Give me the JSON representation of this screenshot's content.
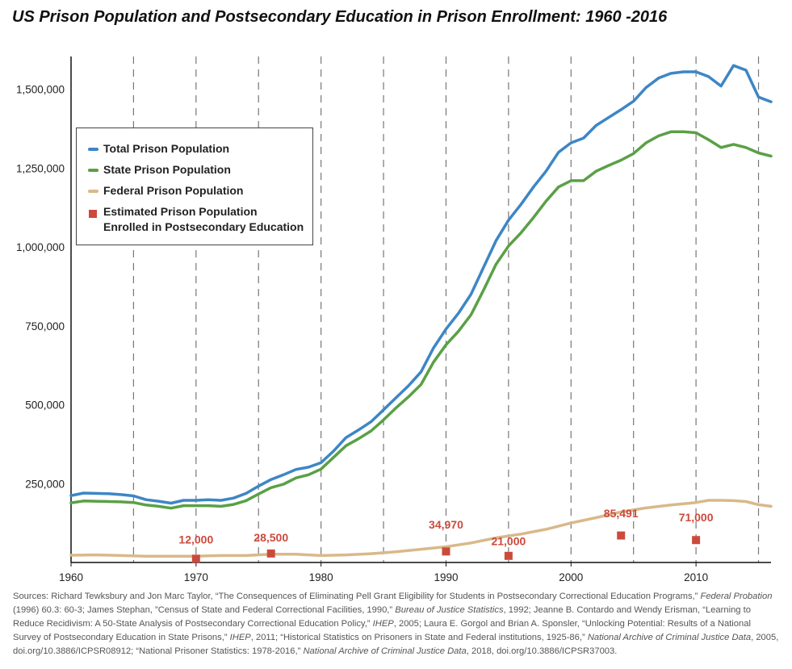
{
  "title": "US Prison Population and Postsecondary Education in Prison Enrollment: 1960 -2016",
  "chart_data": {
    "type": "line",
    "xlim": [
      1960,
      2016
    ],
    "ylim": [
      0,
      1600000
    ],
    "x_ticks": [
      1960,
      1970,
      1980,
      1990,
      2000,
      2010
    ],
    "x_tick_labels": [
      "1960",
      "1970",
      "1980",
      "1990",
      "2000",
      "2010"
    ],
    "y_ticks": [
      250000,
      500000,
      750000,
      1000000,
      1250000,
      1500000
    ],
    "y_tick_labels": [
      "250,000",
      "500,000",
      "750,000",
      "1,000,000",
      "1,250,000",
      "1,500,000"
    ],
    "vertical_dashed_lines": [
      1965,
      1970,
      1975,
      1980,
      1985,
      1990,
      1995,
      2000,
      2005,
      2010,
      2015
    ],
    "colors": {
      "total": "#3d86c6",
      "state": "#5aa046",
      "federal": "#d8b98a",
      "enrolled": "#cc4a3c"
    },
    "series": [
      {
        "name": "Total Prison Population",
        "key": "total",
        "x": [
          1960,
          1961,
          1962,
          1963,
          1964,
          1965,
          1966,
          1967,
          1968,
          1969,
          1970,
          1971,
          1972,
          1973,
          1974,
          1975,
          1976,
          1977,
          1978,
          1979,
          1980,
          1981,
          1982,
          1983,
          1984,
          1985,
          1986,
          1987,
          1988,
          1989,
          1990,
          1991,
          1992,
          1993,
          1994,
          1995,
          1996,
          1997,
          1998,
          1999,
          2000,
          2001,
          2002,
          2003,
          2004,
          2005,
          2006,
          2007,
          2008,
          2009,
          2010,
          2011,
          2012,
          2013,
          2014,
          2015,
          2016
        ],
        "values": [
          212000,
          220000,
          219000,
          218000,
          215000,
          211000,
          199000,
          194000,
          188000,
          197000,
          197000,
          199000,
          197000,
          204000,
          219000,
          242000,
          263000,
          278000,
          295000,
          302000,
          316000,
          353000,
          396000,
          420000,
          446000,
          484000,
          522000,
          560000,
          604000,
          680000,
          740000,
          790000,
          850000,
          935000,
          1020000,
          1085000,
          1135000,
          1190000,
          1240000,
          1300000,
          1330000,
          1345000,
          1385000,
          1410000,
          1435000,
          1462000,
          1505000,
          1535000,
          1550000,
          1555000,
          1555000,
          1540000,
          1510000,
          1575000,
          1560000,
          1475000,
          1460000
        ]
      },
      {
        "name": "State Prison Population",
        "key": "state",
        "x": [
          1960,
          1961,
          1962,
          1963,
          1964,
          1965,
          1966,
          1967,
          1968,
          1969,
          1970,
          1971,
          1972,
          1973,
          1974,
          1975,
          1976,
          1977,
          1978,
          1979,
          1980,
          1981,
          1982,
          1983,
          1984,
          1985,
          1986,
          1987,
          1988,
          1989,
          1990,
          1991,
          1992,
          1993,
          1994,
          1995,
          1996,
          1997,
          1998,
          1999,
          2000,
          2001,
          2002,
          2003,
          2004,
          2005,
          2006,
          2007,
          2008,
          2009,
          2010,
          2011,
          2012,
          2013,
          2014,
          2015,
          2016
        ],
        "values": [
          189000,
          195000,
          194000,
          193000,
          192000,
          190000,
          182000,
          178000,
          172000,
          180000,
          180000,
          180000,
          178000,
          184000,
          196000,
          217000,
          237000,
          248000,
          268000,
          278000,
          296000,
          333000,
          370000,
          392000,
          417000,
          452000,
          490000,
          525000,
          564000,
          635000,
          690000,
          733000,
          785000,
          863000,
          945000,
          1003000,
          1045000,
          1093000,
          1145000,
          1190000,
          1210000,
          1210000,
          1240000,
          1258000,
          1275000,
          1296000,
          1330000,
          1352000,
          1365000,
          1365000,
          1362000,
          1340000,
          1315000,
          1325000,
          1315000,
          1298000,
          1288000
        ]
      },
      {
        "name": "Federal Prison Population",
        "key": "federal",
        "x": [
          1960,
          1962,
          1964,
          1966,
          1968,
          1970,
          1972,
          1974,
          1976,
          1978,
          1980,
          1982,
          1984,
          1986,
          1988,
          1990,
          1992,
          1994,
          1996,
          1998,
          2000,
          2002,
          2004,
          2006,
          2008,
          2010,
          2011,
          2012,
          2013,
          2014,
          2015,
          2016
        ],
        "values": [
          23000,
          24000,
          22000,
          20000,
          20000,
          20000,
          22000,
          22000,
          26000,
          26000,
          22000,
          24000,
          28000,
          34000,
          42000,
          50000,
          62000,
          78000,
          90000,
          105000,
          125000,
          142000,
          160000,
          173000,
          182000,
          190000,
          197000,
          197000,
          196000,
          193000,
          183000,
          178000
        ]
      }
    ],
    "enrollment_points": {
      "name": "Estimated Prison Population Enrolled in Postsecondary Education",
      "x": [
        1970,
        1976,
        1990,
        1995,
        2004,
        2010
      ],
      "values": [
        12000,
        28500,
        34970,
        21000,
        85491,
        71000
      ],
      "labels": [
        "12,000",
        "28,500",
        "34,970",
        "21,000",
        "85,491",
        "71,000"
      ],
      "label_x": [
        1970,
        1976,
        1990,
        1995,
        2004,
        2010
      ],
      "label_y": [
        60000,
        67000,
        107000,
        55000,
        143000,
        130000
      ]
    },
    "legend": {
      "placement": "upper-left",
      "items": [
        {
          "key": "total",
          "kind": "line",
          "label": "Total Prison Population"
        },
        {
          "key": "state",
          "kind": "line",
          "label": "State Prison Population"
        },
        {
          "key": "federal",
          "kind": "line",
          "label": "Federal Prison Population"
        },
        {
          "key": "enrolled",
          "kind": "square",
          "label": "Estimated Prison Population Enrolled in Postsecondary Education"
        }
      ]
    },
    "grid": false
  },
  "sources": [
    {
      "text": "Sources: Richard Tewksbury and Jon Marc Taylor, “The Consequences of Eliminating Pell Grant Eligibility for Students in Postsecondary Correctional Education Programs,” ",
      "italic": false
    },
    {
      "text": "Federal Probation",
      "italic": true
    },
    {
      "text": " (1996) 60.3: 60-3; James Stephan, ”Census of State and Federal Correctional Facilities, 1990,” ",
      "italic": false
    },
    {
      "text": "Bureau of Justice Statistics",
      "italic": true
    },
    {
      "text": ", 1992; Jeanne B. Contardo and Wendy Erisman, “Learning to Reduce Recidivism: A 50-State Analysis of Postsecondary Correctional Education Policy,” ",
      "italic": false
    },
    {
      "text": "IHEP",
      "italic": true
    },
    {
      "text": ", 2005; Laura E. Gorgol and Brian A. Sponsler, “Unlocking Potential: Results of a National Survey of Postsecondary Education in State Prisons,” ",
      "italic": false
    },
    {
      "text": "IHEP",
      "italic": true
    },
    {
      "text": ", 2011; “Historical Statistics on Prisoners in State and Federal institutions, 1925-86,” ",
      "italic": false
    },
    {
      "text": "National Archive of Criminal Justice Data",
      "italic": true
    },
    {
      "text": ", 2005, doi.org/10.3886/ICPSR08912; “National Prisoner Statistics: 1978-2016,” ",
      "italic": false
    },
    {
      "text": "National Archive of Criminal Justice Data",
      "italic": true
    },
    {
      "text": ", 2018, doi.org/10.3886/ICPSR37003.",
      "italic": false
    }
  ]
}
